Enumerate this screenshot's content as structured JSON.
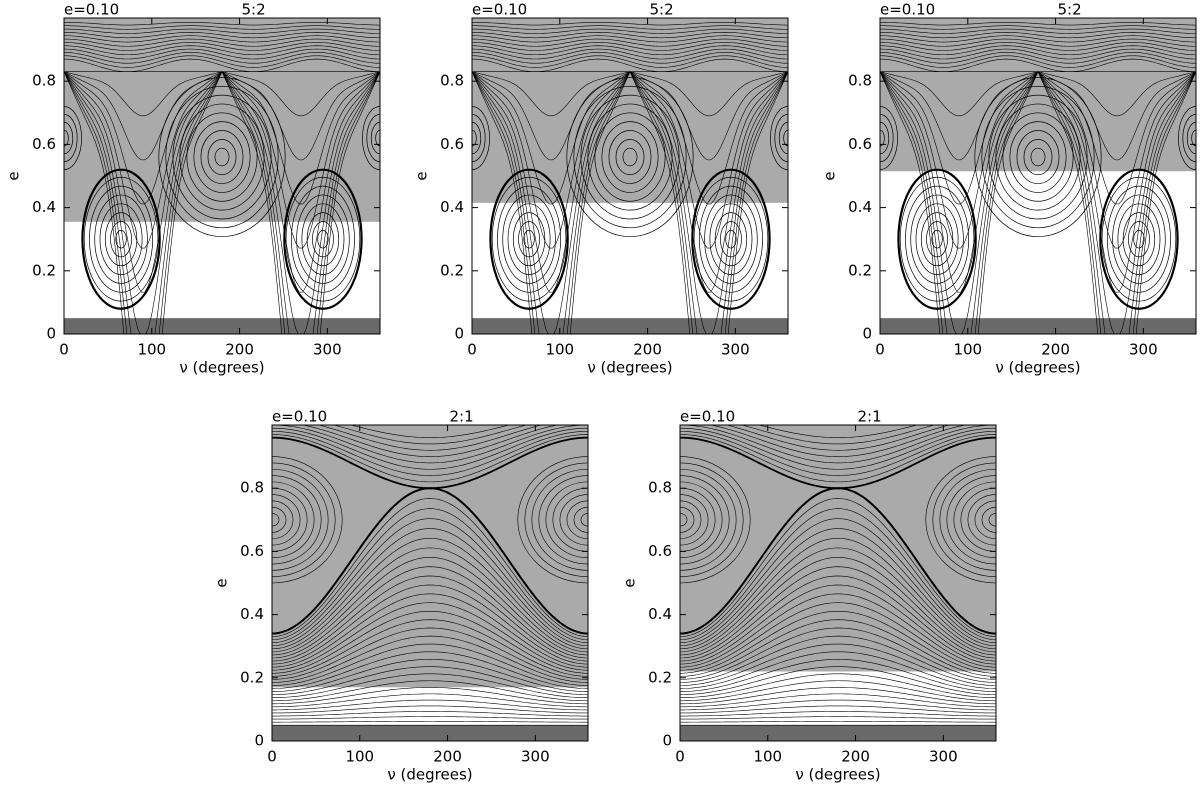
{
  "chart_data": [
    {
      "type": "phase",
      "label": "e=0.10",
      "title": "5:2",
      "xlabel": "ν (degrees)",
      "ylabel": "e",
      "xlim": [
        0,
        360
      ],
      "ylim": [
        0,
        1
      ],
      "xticks": [
        0,
        100,
        200,
        300
      ],
      "yticks": [
        0,
        0.2,
        0.4,
        0.6,
        0.8
      ],
      "shade_color": "#aaaaaa",
      "dark_color": "#6a6a6a",
      "dark_band": [
        0,
        0.05
      ],
      "unshaded_band": [
        0.05,
        0.355
      ]
    },
    {
      "type": "phase",
      "label": "e=0.10",
      "title": "5:2",
      "xlabel": "ν (degrees)",
      "ylabel": "e",
      "xlim": [
        0,
        360
      ],
      "ylim": [
        0,
        1
      ],
      "xticks": [
        0,
        100,
        200,
        300
      ],
      "yticks": [
        0,
        0.2,
        0.4,
        0.6,
        0.8
      ],
      "shade_color": "#aaaaaa",
      "dark_color": "#6a6a6a",
      "dark_band": [
        0,
        0.05
      ],
      "unshaded_band": [
        0.05,
        0.415
      ]
    },
    {
      "type": "phase",
      "label": "e=0.10",
      "title": "5:2",
      "xlabel": "ν (degrees)",
      "ylabel": "e",
      "xlim": [
        0,
        360
      ],
      "ylim": [
        0,
        1
      ],
      "xticks": [
        0,
        100,
        200,
        300
      ],
      "yticks": [
        0,
        0.2,
        0.4,
        0.6,
        0.8
      ],
      "shade_color": "#aaaaaa",
      "dark_color": "#6a6a6a",
      "dark_band": [
        0,
        0.05
      ],
      "unshaded_band": [
        0.05,
        0.515
      ]
    },
    {
      "type": "phase",
      "label": "e=0.10",
      "title": "2:1",
      "xlabel": "ν (degrees)",
      "ylabel": "e",
      "xlim": [
        0,
        360
      ],
      "ylim": [
        0,
        1
      ],
      "xticks": [
        0,
        100,
        200,
        300
      ],
      "yticks": [
        0,
        0.2,
        0.4,
        0.6,
        0.8
      ],
      "shade_color": "#aaaaaa",
      "dark_color": "#6a6a6a",
      "dark_band": [
        0,
        0.05
      ],
      "unshaded_band": [
        0.05,
        0.17
      ]
    },
    {
      "type": "phase",
      "label": "e=0.10",
      "title": "2:1",
      "xlabel": "ν (degrees)",
      "ylabel": "e",
      "xlim": [
        0,
        360
      ],
      "ylim": [
        0,
        1
      ],
      "xticks": [
        0,
        100,
        200,
        300
      ],
      "yticks": [
        0,
        0.2,
        0.4,
        0.6,
        0.8
      ],
      "shade_color": "#aaaaaa",
      "dark_color": "#6a6a6a",
      "dark_band": [
        0,
        0.05
      ],
      "unshaded_band": [
        0.05,
        0.22
      ]
    }
  ]
}
